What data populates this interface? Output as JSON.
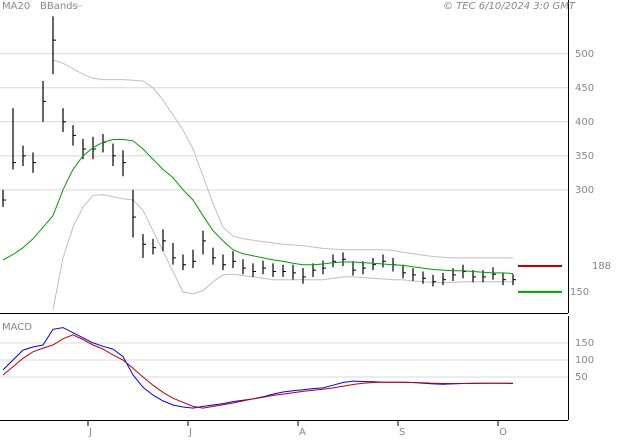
{
  "chart_data": [
    {
      "type": "ohlc",
      "source": "© TEC 6/10/2024 3:0 GMT",
      "ylim": [
        119,
        579
      ],
      "yticks": [
        300,
        350,
        400,
        450,
        500
      ],
      "grid": true,
      "bar_color": "#000000",
      "high": [
        300,
        420,
        365,
        355,
        460,
        555,
        420,
        395,
        375,
        378,
        382,
        368,
        358,
        300,
        235,
        228,
        242,
        222,
        205,
        212,
        240,
        215,
        205,
        210,
        198,
        192,
        196,
        192,
        190,
        190,
        185,
        192,
        196,
        205,
        208,
        195,
        195,
        200,
        205,
        200,
        190,
        185,
        180,
        175,
        178,
        185,
        190,
        182,
        182,
        186,
        178,
        176
      ],
      "low": [
        275,
        330,
        335,
        325,
        400,
        470,
        385,
        365,
        345,
        345,
        355,
        335,
        320,
        230,
        200,
        205,
        210,
        190,
        182,
        185,
        205,
        190,
        182,
        185,
        176,
        172,
        176,
        172,
        172,
        168,
        162,
        172,
        176,
        186,
        188,
        174,
        176,
        182,
        186,
        180,
        170,
        166,
        162,
        158,
        160,
        166,
        170,
        164,
        164,
        168,
        160,
        160
      ],
      "close": [
        285,
        340,
        350,
        340,
        430,
        520,
        400,
        380,
        360,
        360,
        370,
        350,
        340,
        260,
        220,
        215,
        225,
        200,
        190,
        195,
        225,
        200,
        190,
        195,
        185,
        180,
        185,
        180,
        180,
        178,
        172,
        182,
        185,
        195,
        198,
        182,
        185,
        190,
        195,
        190,
        178,
        175,
        170,
        165,
        168,
        175,
        180,
        172,
        172,
        176,
        168,
        168
      ],
      "series": [
        {
          "name": "MA20",
          "color": "#00a000",
          "values": [
            197,
            205,
            215,
            228,
            245,
            262,
            300,
            330,
            350,
            362,
            370,
            374,
            374,
            372,
            360,
            345,
            330,
            318,
            300,
            285,
            262,
            240,
            225,
            212,
            206,
            203,
            200,
            197,
            195,
            192,
            190,
            190,
            191,
            193,
            194,
            194,
            193,
            192,
            191,
            190,
            189,
            187,
            185,
            183,
            182,
            181,
            181,
            180,
            179,
            178,
            178,
            177
          ]
        }
      ],
      "bands": {
        "name": "BBands",
        "color": "#c0c0c0",
        "upper": [
          null,
          null,
          null,
          null,
          null,
          491,
          486,
          478,
          470,
          464,
          462,
          462,
          462,
          461,
          460,
          450,
          432,
          410,
          388,
          360,
          320,
          280,
          245,
          232,
          228,
          226,
          224,
          222,
          220,
          219,
          218,
          216,
          214,
          213,
          212,
          212,
          212,
          212,
          212,
          211,
          208,
          206,
          204,
          202,
          201,
          200,
          200,
          200,
          200,
          200,
          200,
          200
        ],
        "lower": [
          null,
          null,
          null,
          null,
          null,
          124,
          200,
          245,
          275,
          292,
          293,
          290,
          287,
          285,
          270,
          240,
          210,
          180,
          150,
          147,
          152,
          165,
          175,
          176,
          174,
          172,
          170,
          168,
          168,
          168,
          168,
          168,
          168,
          170,
          172,
          172,
          171,
          170,
          169,
          168,
          168,
          166,
          165,
          164,
          164,
          164,
          165,
          165,
          165,
          165,
          165,
          165
        ]
      },
      "levels": [
        {
          "value": 188,
          "color": "#c00000"
        },
        {
          "value": 150,
          "color": "#00a000"
        }
      ]
    },
    {
      "type": "line",
      "title": "MACD",
      "categories": [
        null,
        null,
        null,
        null,
        null,
        null,
        null,
        null,
        null,
        "J",
        null,
        null,
        null,
        null,
        null,
        null,
        null,
        null,
        null,
        "J",
        null,
        null,
        null,
        null,
        null,
        null,
        null,
        null,
        null,
        null,
        "A",
        null,
        null,
        null,
        null,
        null,
        null,
        null,
        null,
        null,
        "S",
        null,
        null,
        null,
        null,
        null,
        null,
        null,
        null,
        null,
        "O",
        null
      ],
      "ylim": [
        -76,
        229
      ],
      "yticks": [
        150,
        100,
        50
      ],
      "grid": true,
      "series": [
        {
          "color": "#0000ff",
          "values": [
            71,
            100,
            129,
            138,
            144,
            190,
            195,
            180,
            165,
            150,
            140,
            132,
            110,
            56,
            20,
            -3,
            -20,
            -32,
            -38,
            -41,
            -36,
            -32,
            -28,
            -22,
            -18,
            -14,
            -8,
            0,
            6,
            10,
            13,
            16,
            18,
            26,
            34,
            38,
            37,
            36,
            35,
            35,
            35,
            34,
            32,
            30,
            29,
            30,
            31,
            32,
            32,
            32,
            32,
            31
          ]
        },
        {
          "color": "#c00000",
          "values": [
            56,
            80,
            105,
            124,
            135,
            144,
            162,
            174,
            160,
            144,
            132,
            115,
            100,
            76,
            50,
            26,
            5,
            -12,
            -24,
            -36,
            -41,
            -36,
            -31,
            -26,
            -20,
            -14,
            -9,
            -4,
            0,
            4,
            8,
            11,
            14,
            18,
            23,
            28,
            32,
            34,
            35,
            35,
            35,
            34,
            33,
            32,
            31,
            31,
            31,
            31,
            32,
            32,
            32,
            32
          ]
        }
      ]
    }
  ]
}
